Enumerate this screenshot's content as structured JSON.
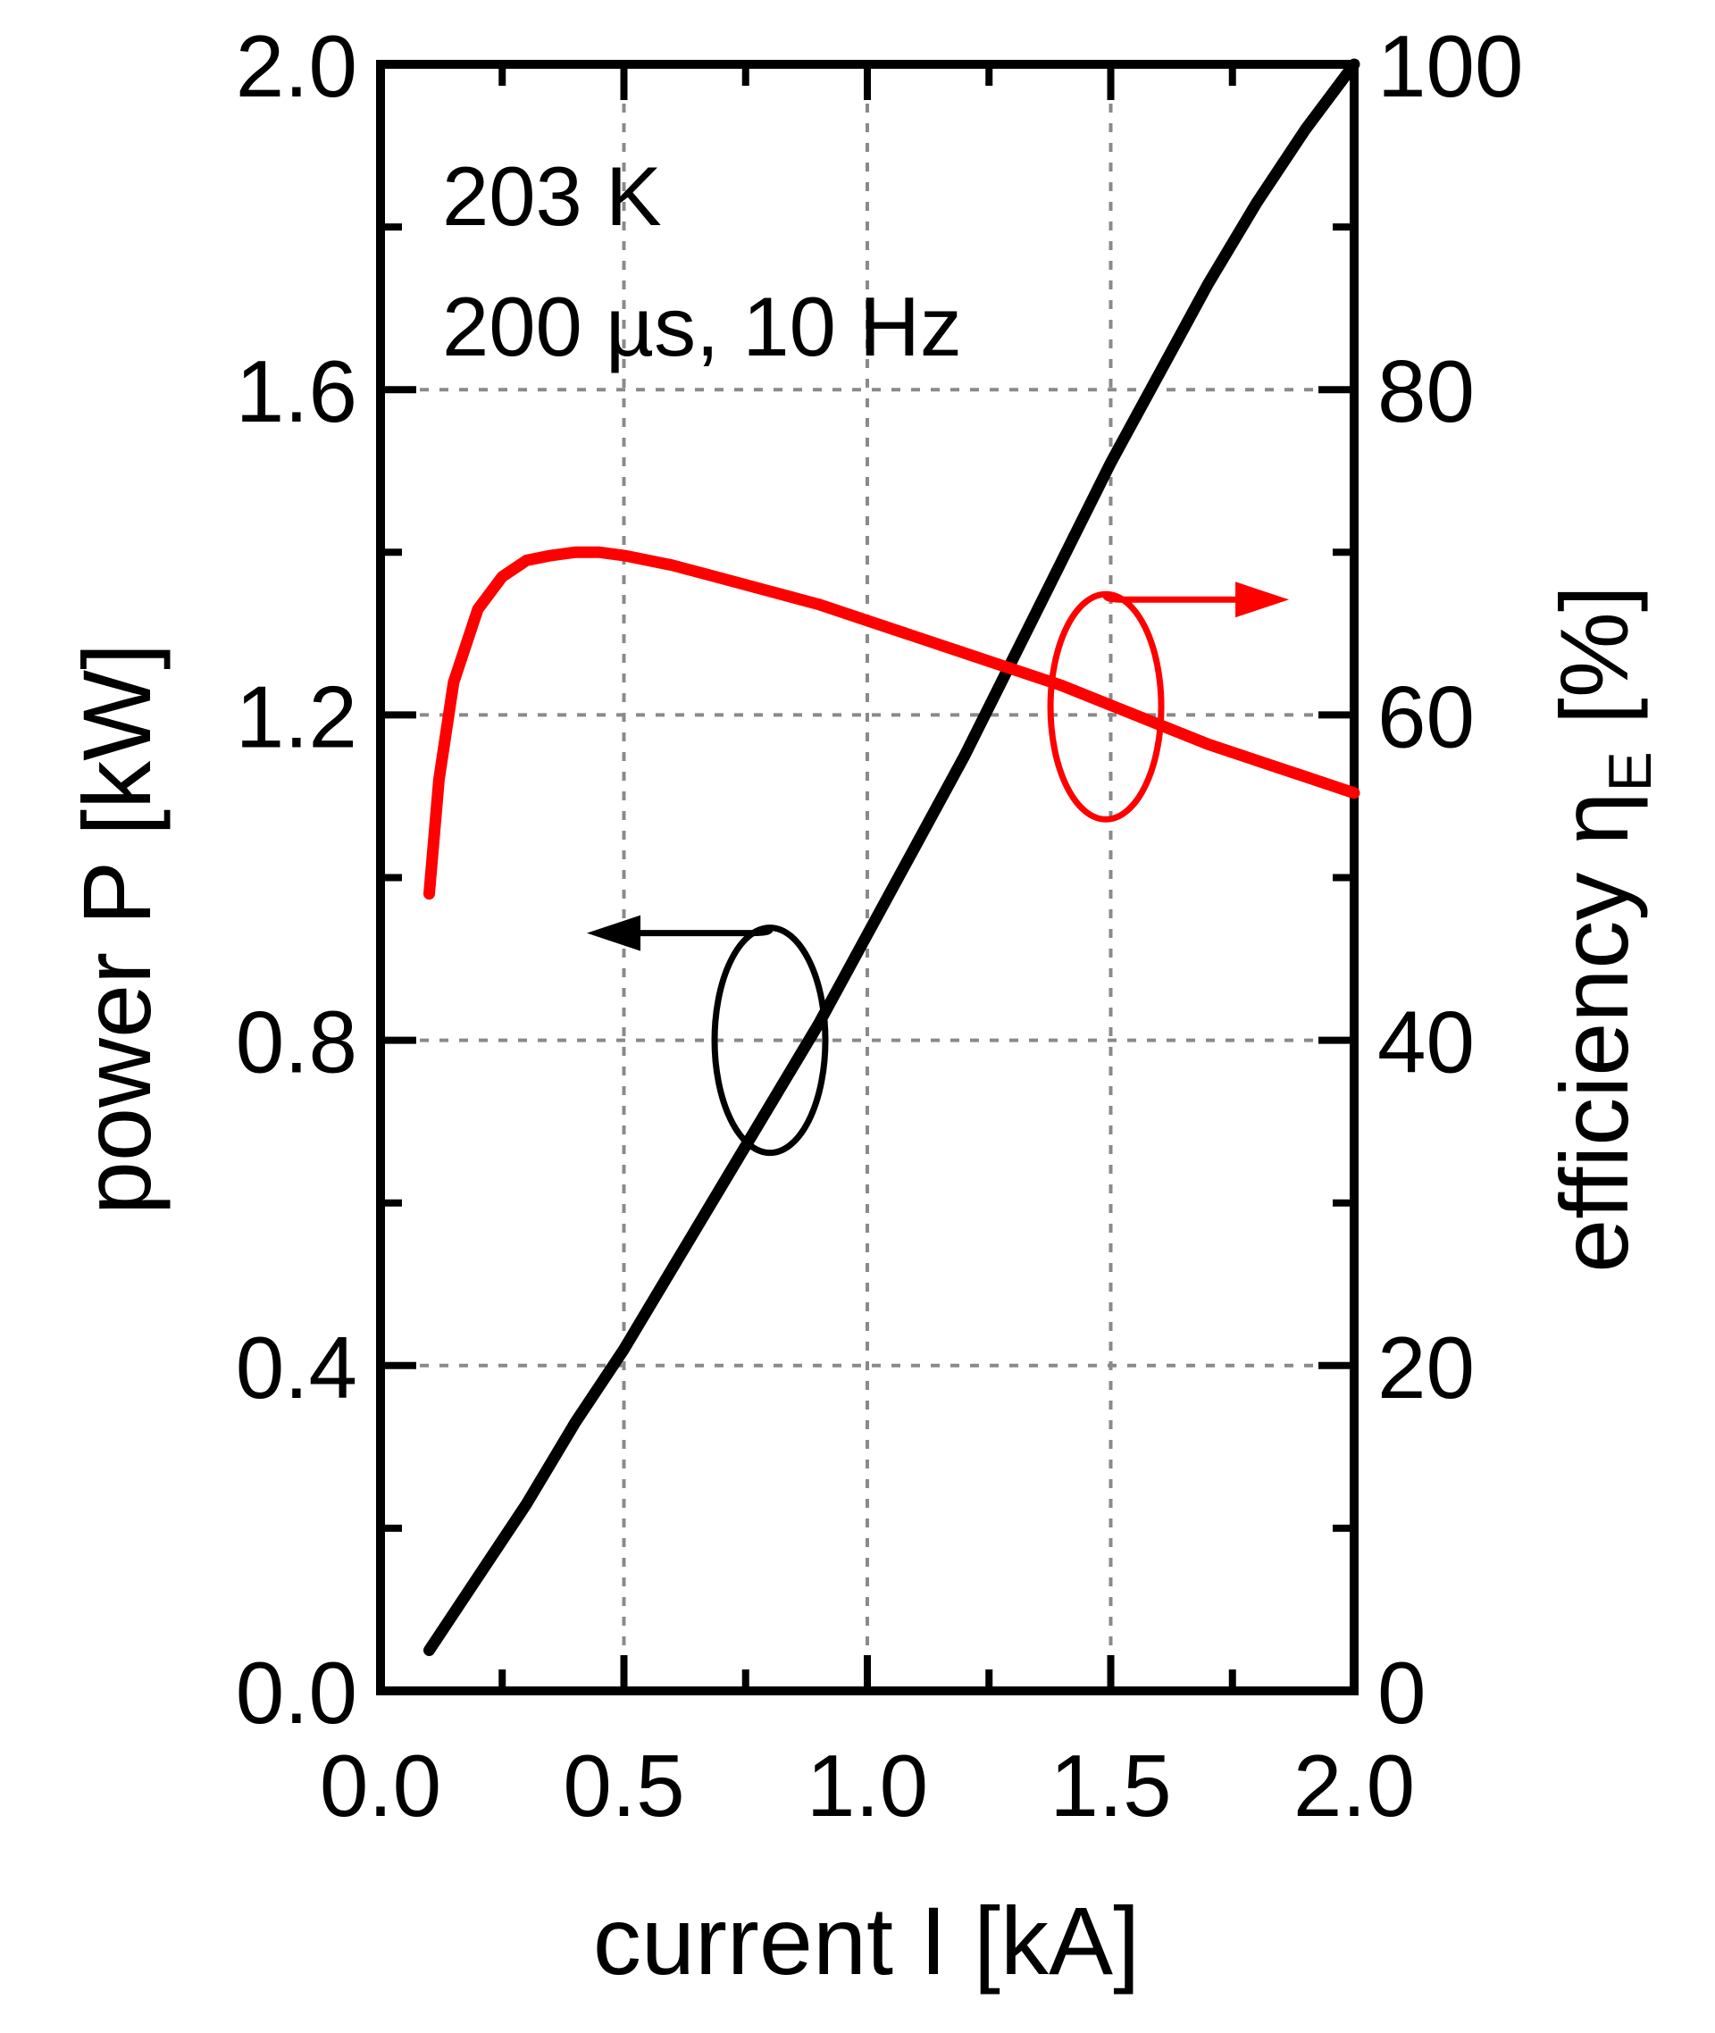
{
  "chart_data": {
    "type": "line",
    "title": "",
    "xlabel": "current I [kA]",
    "ylabel_left": "power P [kW]",
    "ylabel_right": "efficiency η",
    "ylabel_right_subscript": "E",
    "ylabel_right_unit": "[%]",
    "xlim": [
      0.0,
      2.0
    ],
    "ylim_left": [
      0.0,
      2.0
    ],
    "ylim_right": [
      0,
      100
    ],
    "x_ticks": [
      "0.0",
      "0.5",
      "1.0",
      "1.5",
      "2.0"
    ],
    "y_left_ticks": [
      "0.0",
      "0.4",
      "0.8",
      "1.2",
      "1.6",
      "2.0"
    ],
    "y_right_ticks": [
      "0",
      "20",
      "40",
      "60",
      "80",
      "100"
    ],
    "grid": true,
    "annotations": [
      "203 K",
      "200 µs, 10 Hz"
    ],
    "series": [
      {
        "axis": "left",
        "color": "#000000",
        "x": [
          0.1,
          0.2,
          0.3,
          0.4,
          0.5,
          0.6,
          0.7,
          0.8,
          0.9,
          1.0,
          1.1,
          1.2,
          1.3,
          1.4,
          1.5,
          1.6,
          1.7,
          1.8,
          1.9,
          2.0
        ],
        "y": [
          0.05,
          0.14,
          0.23,
          0.33,
          0.42,
          0.52,
          0.62,
          0.72,
          0.82,
          0.93,
          1.04,
          1.15,
          1.27,
          1.39,
          1.51,
          1.62,
          1.73,
          1.83,
          1.92,
          2.0
        ]
      },
      {
        "axis": "right",
        "color": "#ff0000",
        "x": [
          0.1,
          0.12,
          0.15,
          0.2,
          0.25,
          0.3,
          0.35,
          0.4,
          0.45,
          0.5,
          0.6,
          0.7,
          0.8,
          0.9,
          1.0,
          1.1,
          1.2,
          1.3,
          1.4,
          1.5,
          1.6,
          1.7,
          1.8,
          1.9,
          2.0
        ],
        "y": [
          49,
          56,
          62,
          66.5,
          68.5,
          69.5,
          69.8,
          70,
          70,
          69.8,
          69.2,
          68.4,
          67.6,
          66.8,
          65.8,
          64.8,
          63.8,
          62.8,
          61.8,
          60.6,
          59.4,
          58.2,
          57.2,
          56.2,
          55.2
        ]
      }
    ],
    "markers": [
      {
        "series": 0,
        "color": "#000000",
        "ellipse_center": [
          0.8,
          0.8
        ],
        "arrow_direction": "left"
      },
      {
        "series": 1,
        "color": "#ff0000",
        "ellipse_center": [
          1.49,
          60.5
        ],
        "arrow_direction": "right"
      }
    ]
  }
}
